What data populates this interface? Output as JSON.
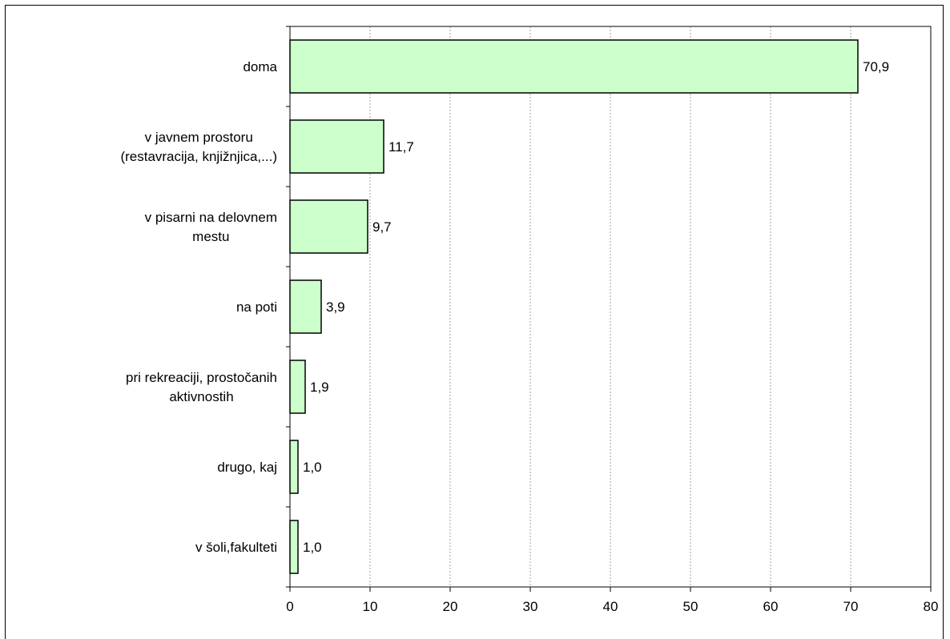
{
  "chart_data": {
    "type": "bar",
    "orientation": "horizontal",
    "categories": [
      [
        "doma"
      ],
      [
        "v javnem prostoru",
        "(restavracija, knjižnjica,...)"
      ],
      [
        "v pisarni na delovnem",
        "mestu"
      ],
      [
        "na poti"
      ],
      [
        "pri rekreaciji, prostočanih",
        "aktivnostih"
      ],
      [
        "drugo, kaj"
      ],
      [
        "v šoli,fakulteti"
      ]
    ],
    "values": [
      70.9,
      11.7,
      9.7,
      3.9,
      1.9,
      1.0,
      1.0
    ],
    "value_labels": [
      "70,9",
      "11,7",
      "9,7",
      "3,9",
      "1,9",
      "1,0",
      "1,0"
    ],
    "xlim": [
      0,
      80
    ],
    "xticks": [
      0,
      10,
      20,
      30,
      40,
      50,
      60,
      70,
      80
    ],
    "grid": "vertical-dotted",
    "legend": "none",
    "title": "",
    "xlabel": "",
    "ylabel": "",
    "colors": {
      "bar_fill": "#ccffcc",
      "bar_stroke": "#000000",
      "grid": "#a0a0a0",
      "axis": "#000000"
    }
  }
}
